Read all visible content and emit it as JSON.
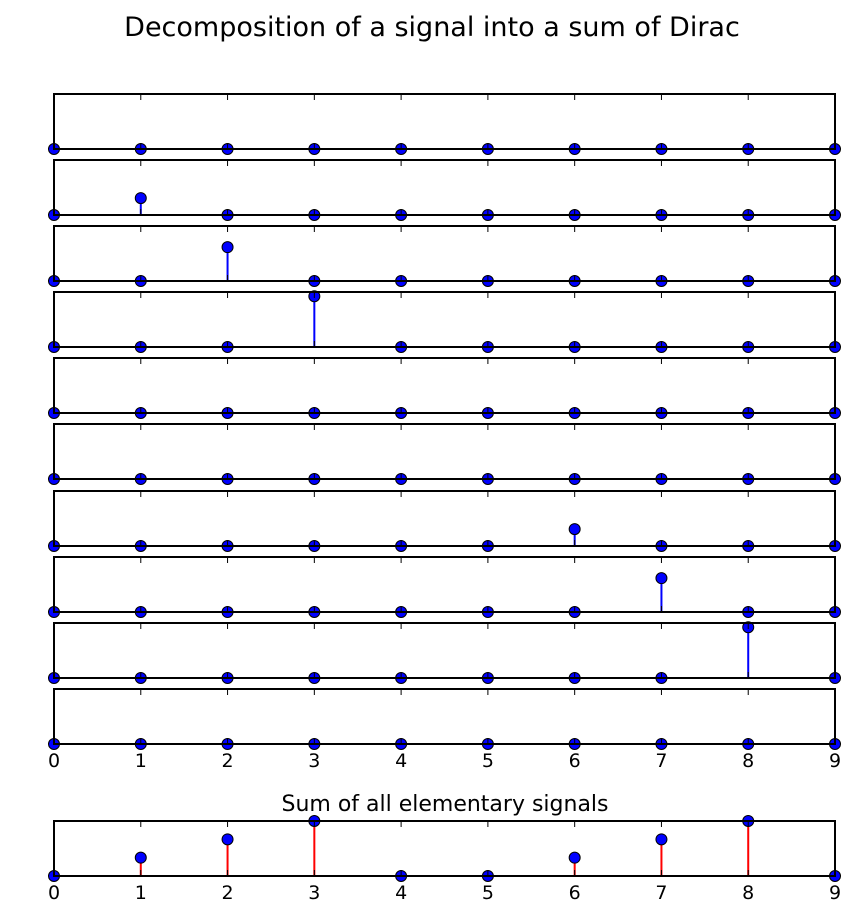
{
  "chart_data": [
    {
      "type": "stem",
      "title": "Decomposition of a signal into a sum of Dirac",
      "xlim": [
        0,
        9
      ],
      "x_ticks": [
        "0",
        "1",
        "2",
        "3",
        "4",
        "5",
        "6",
        "7",
        "8",
        "9"
      ],
      "ylim": [
        0,
        0.65
      ],
      "stem_color": "#0000ff",
      "marker_color": "#0000ff",
      "panels": [
        {
          "values": [
            0,
            0,
            0,
            0,
            0,
            0,
            0,
            0,
            0,
            0
          ]
        },
        {
          "values": [
            0,
            0.2,
            0,
            0,
            0,
            0,
            0,
            0,
            0,
            0
          ]
        },
        {
          "values": [
            0,
            0,
            0.4,
            0,
            0,
            0,
            0,
            0,
            0,
            0
          ]
        },
        {
          "values": [
            0,
            0,
            0,
            0.6,
            0,
            0,
            0,
            0,
            0,
            0
          ]
        },
        {
          "values": [
            0,
            0,
            0,
            0,
            0,
            0,
            0,
            0,
            0,
            0
          ]
        },
        {
          "values": [
            0,
            0,
            0,
            0,
            0,
            0,
            0,
            0,
            0,
            0
          ]
        },
        {
          "values": [
            0,
            0,
            0,
            0,
            0,
            0,
            0.2,
            0,
            0,
            0
          ]
        },
        {
          "values": [
            0,
            0,
            0,
            0,
            0,
            0,
            0,
            0.4,
            0,
            0
          ]
        },
        {
          "values": [
            0,
            0,
            0,
            0,
            0,
            0,
            0,
            0,
            0.6,
            0
          ]
        },
        {
          "values": [
            0,
            0,
            0,
            0,
            0,
            0,
            0,
            0,
            0,
            0
          ]
        }
      ]
    },
    {
      "type": "stem",
      "title": "Sum of all elementary signals",
      "xlim": [
        0,
        9
      ],
      "x_ticks": [
        "0",
        "1",
        "2",
        "3",
        "4",
        "5",
        "6",
        "7",
        "8",
        "9"
      ],
      "ylim": [
        0,
        0.6
      ],
      "stem_color": "#ff0000",
      "marker_color": "#0000ff",
      "x": [
        0,
        1,
        2,
        3,
        4,
        5,
        6,
        7,
        8,
        9
      ],
      "values": [
        0,
        0.2,
        0.4,
        0.6,
        0,
        0,
        0.2,
        0.4,
        0.6,
        0
      ]
    }
  ]
}
